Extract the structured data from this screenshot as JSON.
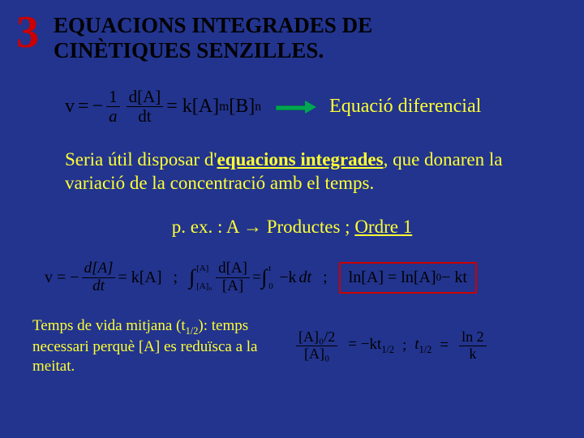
{
  "colors": {
    "background": "#22348e",
    "slide_number": "#cc0000",
    "title": "#000000",
    "body_text": "#000000",
    "highlight": "#ffff33",
    "arrow_fill": "#00a651",
    "arrow_border": "#008040",
    "box_border": "#cc0000"
  },
  "fonts": {
    "body_family": "Times New Roman, serif",
    "title_size_pt": 20,
    "body_size_pt": 17,
    "number_size_pt": 42
  },
  "slide_number": "3",
  "title_line1": "EQUACIONS INTEGRADES DE",
  "title_line2": "CINÈTIQUES SENZILLES.",
  "eq_differential": {
    "lhs_v": "v",
    "minus": "−",
    "frac1_num": "1",
    "frac1_den": "a",
    "frac2_num": "d[A]",
    "frac2_den": "dt",
    "rhs": "= k[A]",
    "sup_m": "m",
    "b": "[B]",
    "sup_n": "n"
  },
  "label_differential": "Equació diferencial",
  "para1_pre": "Seria útil disposar d'",
  "para1_bold_u": "equacions integrades",
  "para1_post": ", que donaren la variació de la concentració amb el temps.",
  "example": {
    "prefix": "p. ex. : A ",
    "arrow": "→",
    "products": " Productes  ;  ",
    "order": "Ordre 1"
  },
  "eq_integrated": {
    "part1_v": "v = −",
    "f1_num": "d[A]",
    "f1_den": "dt",
    "part1_tail": " = k[A]",
    "semi": ";",
    "int": "∫",
    "int_top": "[A]",
    "int_bot": "[A]₀",
    "f2_num": "d[A]",
    "f2_den": "[A]",
    "eq2": " = ",
    "f3_num": "−k",
    "int2_top": "t",
    "int2_bot": "0",
    "dt": "dt",
    "result": "ln[A] = ln[A]",
    "sub0": "0",
    "result_tail": " − kt"
  },
  "half_life_text_1": "Temps de vida mitjana (t",
  "half_life_sub": "1/2",
  "half_life_text_2": "): temps necessari perquè [A] es reduïsca a la meitat.",
  "eq_half": {
    "f1_num": "[A]₀/2",
    "f1_den": "[A]₀",
    "mid": " = −kt",
    "sub12": "1/2",
    "semi": " ; ",
    "t12": "t",
    "eq": " = ",
    "f2_num": "ln 2",
    "f2_den": "k"
  }
}
